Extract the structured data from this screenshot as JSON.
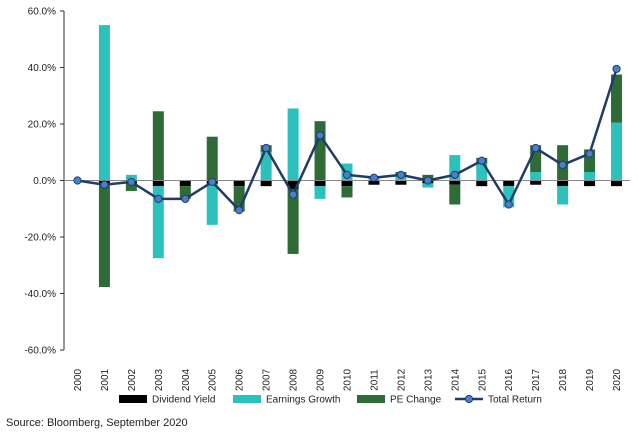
{
  "chart_data": {
    "type": "bar",
    "title": "",
    "xlabel": "",
    "ylabel": "",
    "ylim": [
      -60,
      60
    ],
    "yticks": [
      "60.0%",
      "40.0%",
      "20.0%",
      "0.0%",
      "-20.0%",
      "-40.0%",
      "-60.0%"
    ],
    "ytick_values": [
      60,
      40,
      20,
      0,
      -20,
      -40,
      -60
    ],
    "grid": false,
    "legend": "bottom",
    "categories": [
      "2000",
      "2001",
      "2002",
      "2003",
      "2004",
      "2005",
      "2006",
      "2007",
      "2008",
      "2009",
      "2010",
      "2011",
      "2012",
      "2013",
      "2014",
      "2015",
      "2016",
      "2017",
      "2018",
      "2019",
      "2020"
    ],
    "series": [
      {
        "name": "Dividend Yield",
        "kind": "stacked-bar",
        "color": "#000000",
        "values": [
          0,
          -1.2,
          -1.2,
          -2.0,
          -2.0,
          -1.2,
          -2.0,
          -2.0,
          -3.0,
          -2.0,
          -2.0,
          -1.5,
          -1.5,
          -1.0,
          -1.5,
          -2.0,
          -2.0,
          -1.5,
          -2.0,
          -2.0,
          -2.0
        ]
      },
      {
        "name": "Earnings Growth",
        "kind": "stacked-bar",
        "color": "#2cc1bc",
        "values": [
          0,
          55.0,
          2.0,
          -25.5,
          0,
          -14.5,
          0,
          10.0,
          25.5,
          -4.5,
          6.0,
          1.0,
          1.5,
          -1.5,
          9.0,
          6.0,
          -7.5,
          3.0,
          -6.5,
          3.0,
          20.5
        ]
      },
      {
        "name": "PE Change",
        "kind": "stacked-bar",
        "color": "#2e6b36",
        "values": [
          0,
          -36.5,
          -2.5,
          24.5,
          -4.5,
          15.5,
          -9.0,
          2.5,
          -23.0,
          21.0,
          -4.0,
          0.5,
          1.5,
          2.0,
          -7.0,
          2.0,
          0,
          9.5,
          12.5,
          8.0,
          17.0
        ]
      },
      {
        "name": "Total Return",
        "kind": "line",
        "color": "#1f3d66",
        "values": [
          0.0,
          -1.5,
          -0.5,
          -6.5,
          -6.5,
          -0.5,
          -10.5,
          11.5,
          -5.0,
          16.0,
          2.0,
          1.0,
          2.0,
          0.0,
          2.0,
          7.0,
          -8.5,
          11.5,
          5.5,
          9.5,
          39.5
        ]
      }
    ]
  },
  "source": "Source: Bloomberg, September 2020"
}
